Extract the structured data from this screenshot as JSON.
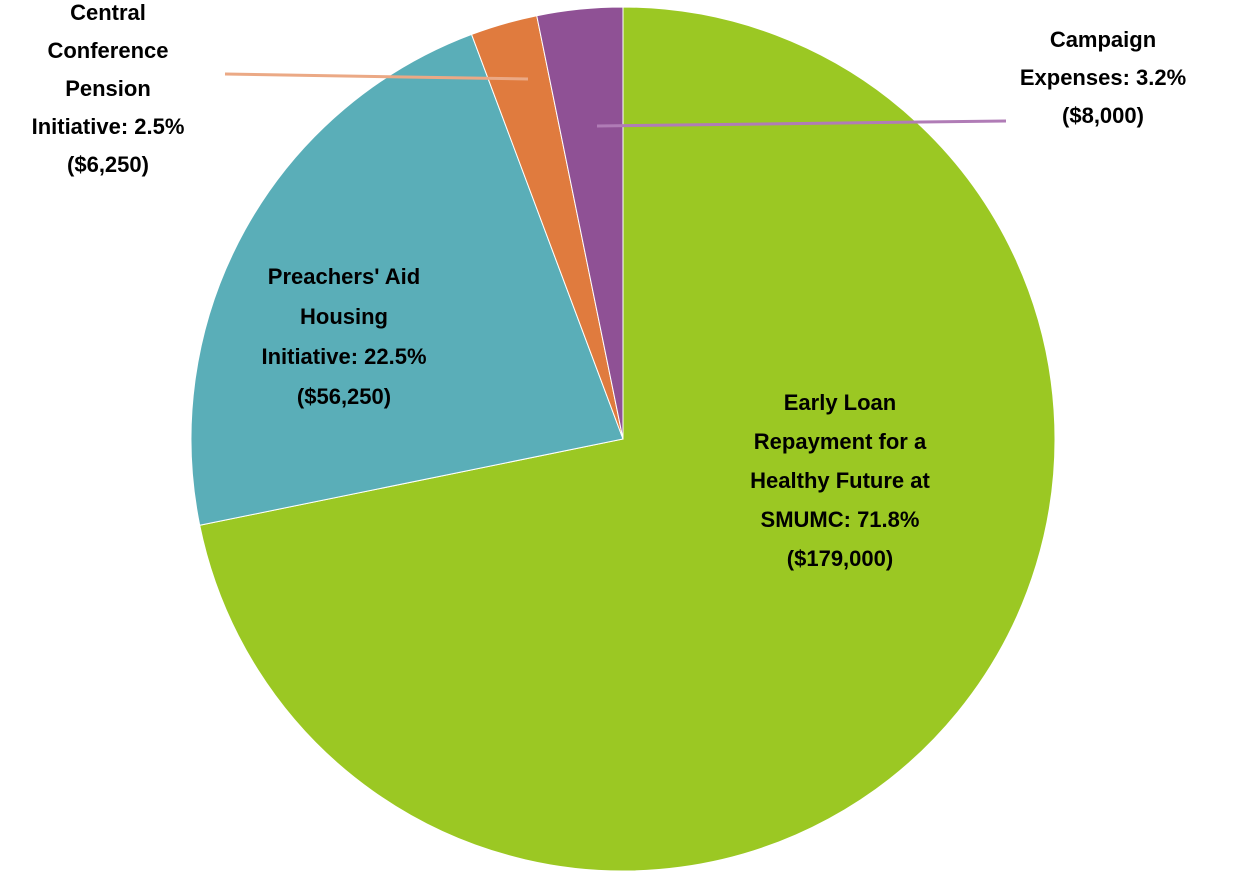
{
  "chart_data": {
    "type": "pie",
    "title": "",
    "start_angle_deg": 0,
    "direction": "clockwise",
    "legend": "none",
    "slices": [
      {
        "id": "early-loan",
        "label": "Early Loan Repayment for a Healthy Future at SMUMC",
        "percent": 71.8,
        "value": 179000,
        "color": "#9BC823",
        "label_lines": [
          "Early Loan",
          "Repayment for a",
          "Healthy Future at",
          "SMUMC: 71.8%",
          "($179,000)"
        ]
      },
      {
        "id": "preachers-aid",
        "label": "Preachers' Aid Housing Initiative",
        "percent": 22.5,
        "value": 56250,
        "color": "#5AAEB8",
        "label_lines": [
          "Preachers' Aid",
          "Housing",
          "Initiative: 22.5%",
          "($56,250)"
        ]
      },
      {
        "id": "central-conference",
        "label": "Central Conference Pension Initiative",
        "percent": 2.5,
        "value": 6250,
        "color": "#E07B3E",
        "leader_color": "#EBA985",
        "label_lines": [
          "Central",
          "Conference",
          "Pension",
          "Initiative: 2.5%",
          "($6,250)"
        ]
      },
      {
        "id": "campaign-expenses",
        "label": "Campaign Expenses",
        "percent": 3.2,
        "value": 8000,
        "color": "#8F5195",
        "leader_color": "#B07CB6",
        "label_lines": [
          "Campaign",
          "Expenses: 3.2%",
          "($8,000)"
        ]
      }
    ]
  }
}
